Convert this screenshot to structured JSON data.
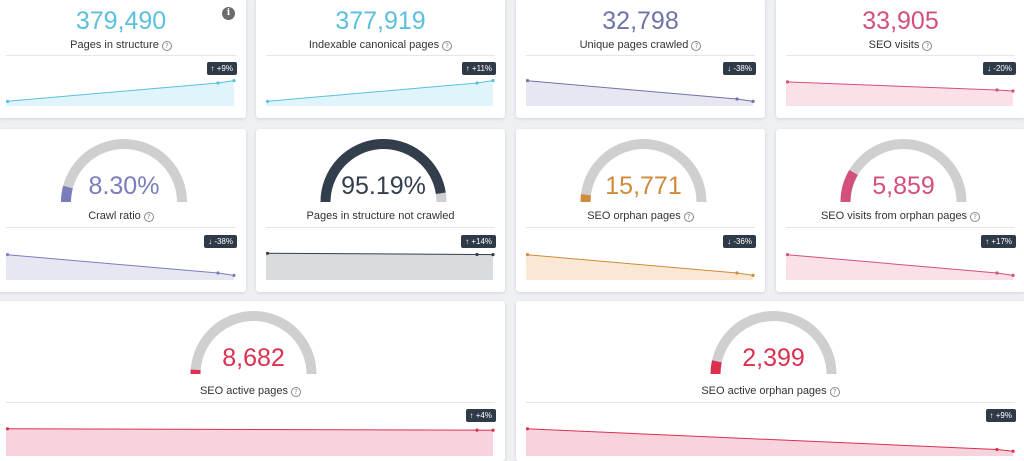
{
  "cards": [
    {
      "id": "pages-in-structure",
      "value": "379,490",
      "label": "Pages in structure",
      "badge": "↑ +9%",
      "color": "#5bc0de",
      "fill": "#dff5fb",
      "spark": [
        0.1,
        0.9
      ],
      "gauge": null
    },
    {
      "id": "indexable-canonical-pages",
      "value": "377,919",
      "label": "Indexable canonical pages",
      "badge": "↑ +11%",
      "color": "#5bc0de",
      "fill": "#dff5fb",
      "spark": [
        0.1,
        0.9
      ],
      "gauge": null
    },
    {
      "id": "unique-pages-crawled",
      "value": "32,798",
      "label": "Unique pages crawled",
      "badge": "↓ -38%",
      "color": "#6f73a8",
      "fill": "#e7e7f2",
      "spark": [
        0.9,
        0.1
      ],
      "gauge": null
    },
    {
      "id": "seo-visits",
      "value": "33,905",
      "label": "SEO visits",
      "badge": "↓ -20%",
      "color": "#d2507a",
      "fill": "#fbe0e8",
      "spark": [
        0.85,
        0.5
      ],
      "gauge": null
    },
    {
      "id": "crawl-ratio",
      "value": "8.30%",
      "label": "Crawl ratio",
      "badge": "↓ -38%",
      "color": "#7a7dbb",
      "fill": "#e7e7f2",
      "spark": [
        0.9,
        0.1
      ],
      "gauge": 0.083
    },
    {
      "id": "pages-in-structure-not-crawled",
      "value": "95.19%",
      "label": "Pages in structure not crawled",
      "badge": "↑ +14%",
      "color": "#333e4d",
      "fill": "#d9dcdf",
      "spark": [
        0.95,
        0.9
      ],
      "gauge": 0.9519
    },
    {
      "id": "seo-orphan-pages",
      "value": "15,771",
      "label": "SEO orphan pages",
      "badge": "↓ -36%",
      "color": "#d08a3a",
      "fill": "#fbe8d4",
      "spark": [
        0.9,
        0.1
      ],
      "gauge": 0.04
    },
    {
      "id": "seo-visits-from-orphan-pages",
      "value": "5,859",
      "label": "SEO visits from orphan pages",
      "badge": "↑ +17%",
      "color": "#d2507a",
      "fill": "#fbe0e8",
      "spark": [
        0.9,
        0.1
      ],
      "gauge": 0.17
    },
    {
      "id": "seo-active-pages",
      "value": "8,682",
      "label": "SEO active pages",
      "badge": "↑ +4%",
      "color": "#d9314f",
      "fill": "#f8d3de",
      "spark": [
        0.9,
        0.85
      ],
      "gauge": 0.023
    },
    {
      "id": "seo-active-orphan-pages",
      "value": "2,399",
      "label": "SEO active orphan pages",
      "badge": "↑ +9%",
      "color": "#d9314f",
      "fill": "#f8d3de",
      "spark": [
        0.9,
        0.1
      ],
      "gauge": 0.07
    }
  ]
}
